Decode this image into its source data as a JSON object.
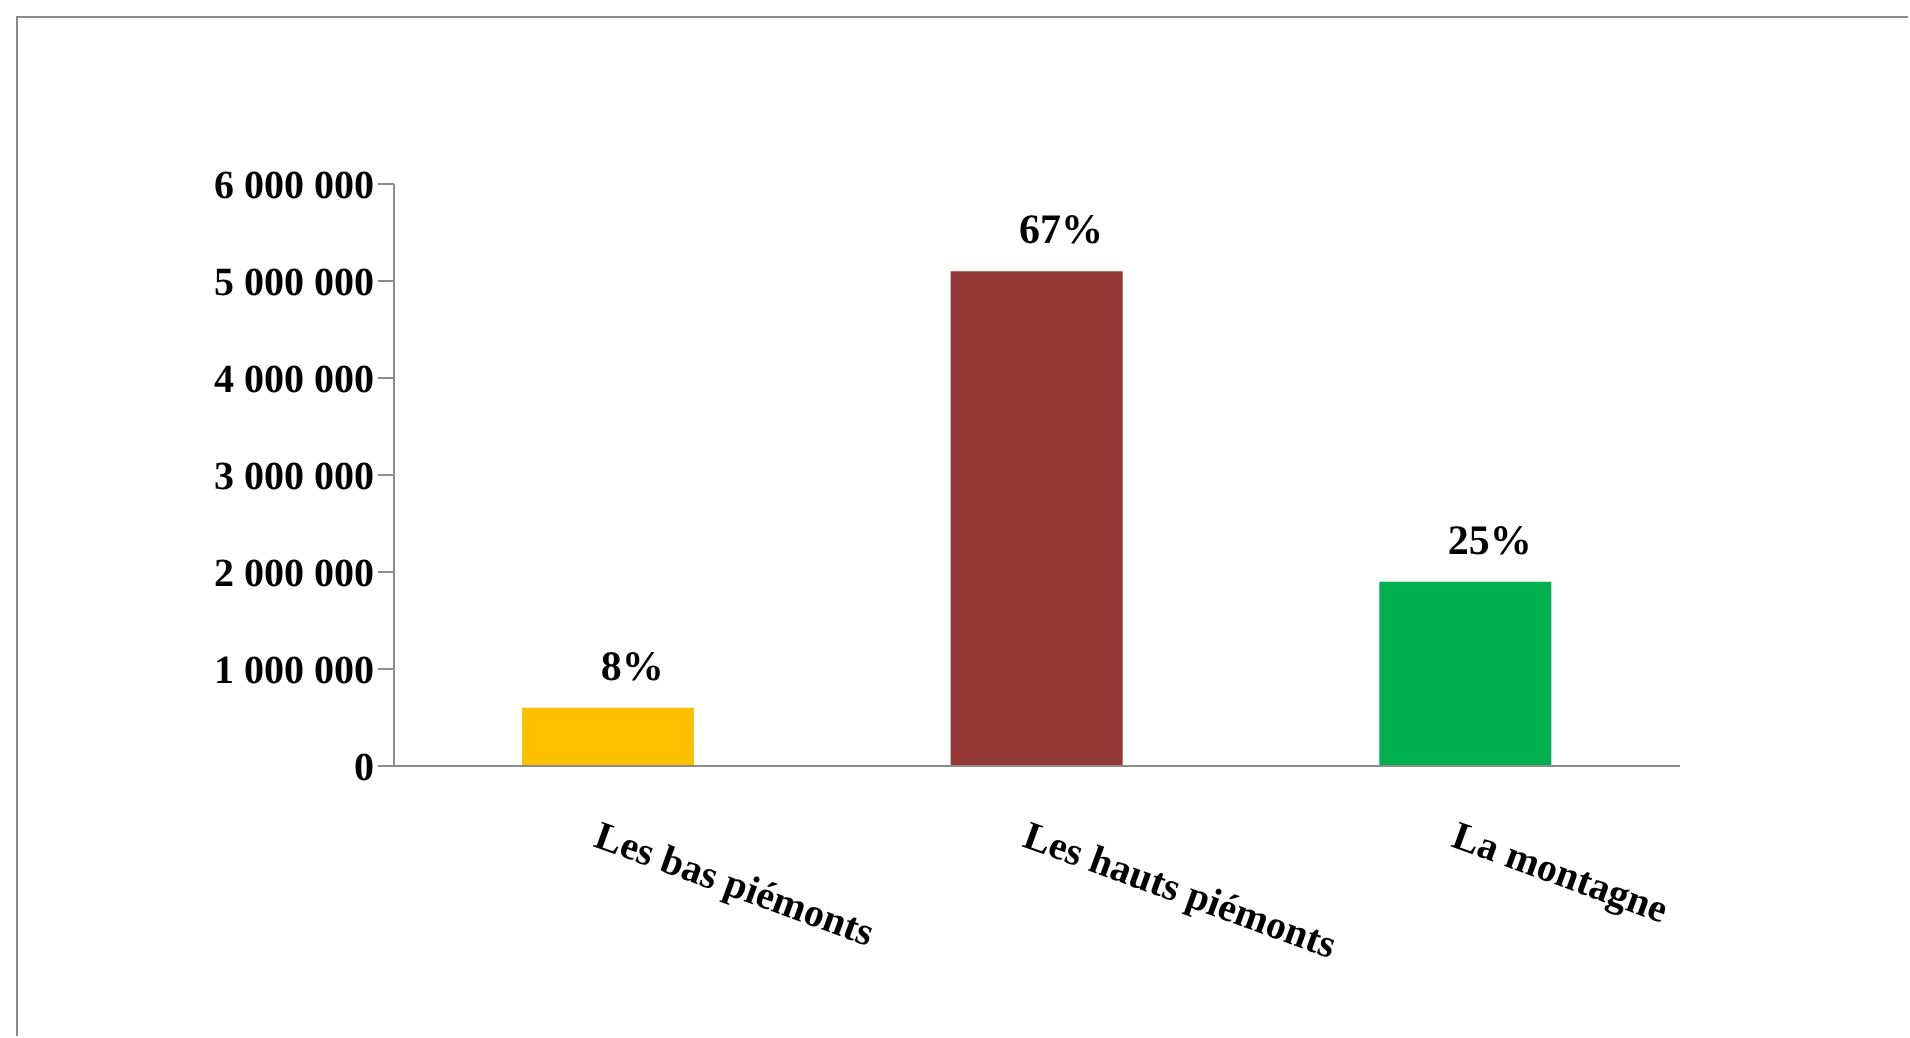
{
  "chart_data": {
    "type": "bar",
    "categories": [
      "Les bas piémonts",
      "Les hauts piémonts",
      "La montagne"
    ],
    "values": [
      600000,
      5100000,
      1900000
    ],
    "colors": [
      "#ffc000",
      "#953735",
      "#00b050"
    ],
    "annotations": [
      {
        "text": "8%",
        "x": "Les bas piémonts",
        "y": 600000
      },
      {
        "text": "67%",
        "x": "Les hauts piémonts",
        "y": 5100000
      },
      {
        "text": "25%",
        "x": "La montagne",
        "y": 1900000
      }
    ],
    "ylim": [
      0,
      6000000
    ],
    "yticks": [
      0,
      {
        "value": 1000000,
        "label": "1 000 000"
      },
      {
        "value": 2000000,
        "label": "2 000 000"
      },
      {
        "value": 3000000,
        "label": "3 000 000"
      },
      {
        "value": 4000000,
        "label": "4 000 000"
      },
      {
        "value": 5000000,
        "label": "5 000 000"
      },
      {
        "value": 6000000,
        "label": "6 000 000"
      }
    ]
  }
}
